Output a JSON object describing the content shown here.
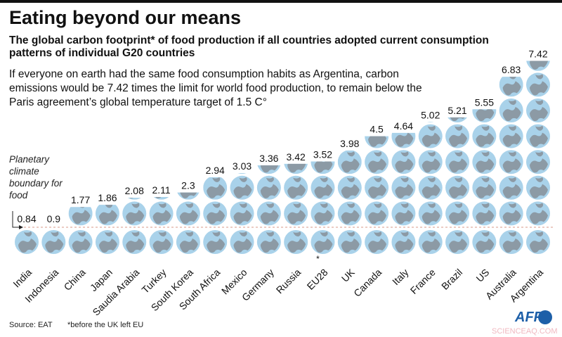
{
  "title": "Eating beyond our means",
  "subtitle": "The global carbon footprint* of food production if all countries adopted current consumption patterns of individual G20 countries",
  "description": "If everyone on earth had the same food consumption habits as Argentina, carbon emissions would be 7.42 times the limit for world food production, to remain below the Paris agreement’s global temperature target of 1.5 C°",
  "boundary_label": "Planetary climate boundary for food",
  "source": "Source: EAT",
  "footnote": "*before the UK left EU",
  "logo": "AFP",
  "watermark": "SCIENCEAQ.COM",
  "colors": {
    "globe": "#a9d2ea",
    "land": "#8c9aa5"
  },
  "chart_data": {
    "type": "pictogram",
    "categories": [
      "India",
      "Indonesia",
      "China",
      "Japan",
      "Saudia Arabia",
      "Turkey",
      "South Korea",
      "South Africa",
      "Mexico",
      "Germany",
      "Russia",
      "EU28",
      "UK",
      "Canada",
      "Italy",
      "France",
      "Brazil",
      "US",
      "Australia",
      "Argentina"
    ],
    "values": [
      0.84,
      0.9,
      1.77,
      1.86,
      2.08,
      2.11,
      2.3,
      2.94,
      3.03,
      3.36,
      3.42,
      3.52,
      3.98,
      4.5,
      4.64,
      5.02,
      5.21,
      5.55,
      6.83,
      7.42
    ],
    "value_labels": [
      "0.84",
      "0.9",
      "1.77",
      "1.86",
      "2.08",
      "2.11",
      "2.3",
      "2.94",
      "3.03",
      "3.36",
      "3.42",
      "3.52",
      "3.98",
      "4.5",
      "4.64",
      "5.02",
      "5.21",
      "5.55",
      "6.83",
      "7.42"
    ],
    "annotations": {
      "EU28": "*"
    },
    "unit": "1 globe = planetary climate boundary for food"
  }
}
